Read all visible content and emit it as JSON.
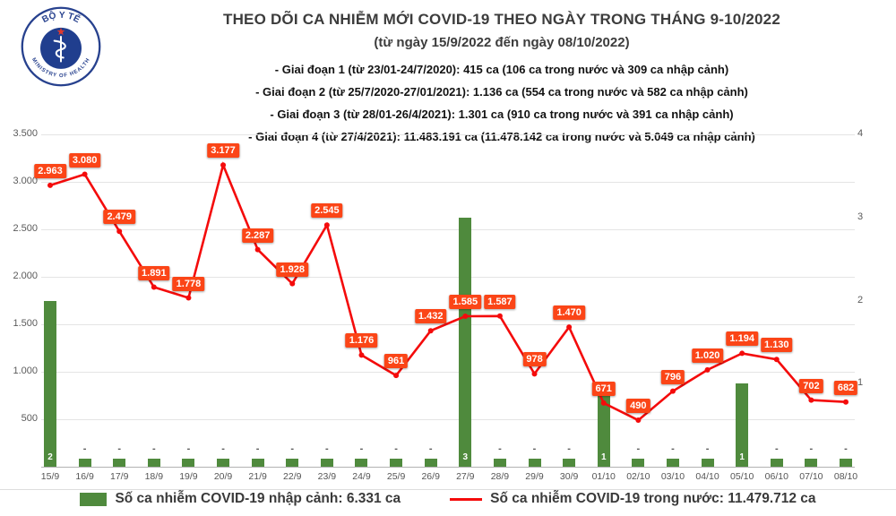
{
  "logo": {
    "top": "BỘ Y TẾ",
    "bottom": "MINISTRY OF HEALTH"
  },
  "header": {
    "title": "THEO DÕI CA NHIỄM MỚI COVID-19 THEO NGÀY TRONG THÁNG 9-10/2022",
    "subtitle": "(từ ngày 15/9/2022 đến ngày 08/10/2022)",
    "notes": [
      "- Giai đoạn 1 (từ 23/01-24/7/2020): 415 ca (106 ca trong nước và 309 ca nhập cảnh)",
      "- Giai đoạn 2 (từ 25/7/2020-27/01/2021): 1.136 ca (554 ca trong nước và 582 ca nhập cảnh)",
      "- Giai đoạn 3 (từ 28/01-26/4/2021): 1.301 ca (910 ca trong nước và 391 ca nhập cảnh)",
      "- Giai đoạn 4 (từ 27/4/2021): 11.483.191 ca (11.478.142 ca trong nước và 5.049 ca nhập cảnh)"
    ]
  },
  "chart_data": {
    "type": "bar+line",
    "categories": [
      "15/9",
      "16/9",
      "17/9",
      "18/9",
      "19/9",
      "20/9",
      "21/9",
      "22/9",
      "23/9",
      "24/9",
      "25/9",
      "26/9",
      "27/9",
      "28/9",
      "29/9",
      "30/9",
      "01/10",
      "02/10",
      "03/10",
      "04/10",
      "05/10",
      "06/10",
      "07/10",
      "08/10"
    ],
    "series": [
      {
        "name": "Số ca nhiễm COVID-19 nhập cảnh",
        "type": "bar",
        "axis": "right",
        "color": "#4f8a3d",
        "null_marker": "-",
        "values": [
          2,
          null,
          null,
          null,
          null,
          null,
          null,
          null,
          null,
          null,
          null,
          null,
          3,
          null,
          null,
          null,
          1,
          null,
          null,
          null,
          1,
          null,
          null,
          null
        ]
      },
      {
        "name": "Số ca nhiễm COVID-19 trong nước",
        "type": "line",
        "axis": "left",
        "color": "#f40b0b",
        "values": [
          2963,
          3080,
          2479,
          1891,
          1778,
          3177,
          2287,
          1928,
          2545,
          1176,
          961,
          1432,
          1585,
          1587,
          978,
          1470,
          671,
          490,
          796,
          1020,
          1194,
          1130,
          702,
          682
        ],
        "labels": [
          "2.963",
          "3.080",
          "2.479",
          "1.891",
          "1.778",
          "3.177",
          "2.287",
          "1.928",
          "2.545",
          "1.176",
          "961",
          "1.432",
          "1.585",
          "1.587",
          "978",
          "1.470",
          "671",
          "490",
          "796",
          "1.020",
          "1.194",
          "1.130",
          "702",
          "682"
        ]
      }
    ],
    "left_axis": {
      "max": 3500,
      "ticks": [
        {
          "label": "3.500",
          "value": 3500
        },
        {
          "label": "3.000",
          "value": 3000
        },
        {
          "label": "2.500",
          "value": 2500
        },
        {
          "label": "2.000",
          "value": 2000
        },
        {
          "label": "1.500",
          "value": 1500
        },
        {
          "label": "1.000",
          "value": 1000
        },
        {
          "label": "500",
          "value": 500
        }
      ]
    },
    "right_axis": {
      "max": 4,
      "ticks": [
        {
          "label": "4",
          "value": 4
        },
        {
          "label": "3",
          "value": 3
        },
        {
          "label": "2",
          "value": 2
        },
        {
          "label": "1",
          "value": 1
        }
      ]
    },
    "grid": true,
    "legend_position": "bottom"
  },
  "legend": {
    "bar": "Số ca nhiễm COVID-19 nhập cảnh: 6.331 ca",
    "line": "Số ca nhiễm COVID-19 trong nước: 11.479.712 ca"
  },
  "colors": {
    "line": "#f40b0b",
    "label_bg": "#fb4517",
    "bar": "#4f8a3d",
    "grid": "#e4e4e4",
    "axis_text": "#5a5a5a",
    "logo_blue": "#27418e",
    "logo_star_red": "#e03a2f"
  }
}
